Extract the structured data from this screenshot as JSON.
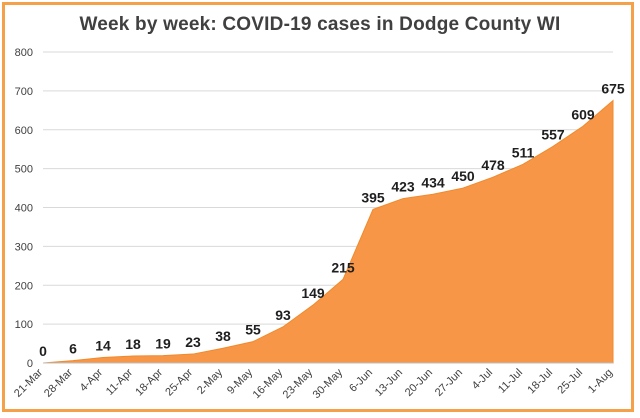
{
  "chart_data": {
    "type": "area",
    "title": "Week by week:  COVID-19 cases in Dodge County WI",
    "xlabel": "",
    "ylabel": "",
    "ylim": [
      0,
      800
    ],
    "yticks": [
      0,
      100,
      200,
      300,
      400,
      500,
      600,
      700,
      800
    ],
    "grid": true,
    "categories": [
      "21-Mar",
      "28-Mar",
      "4-Apr",
      "11-Apr",
      "18-Apr",
      "25-Apr",
      "2-May",
      "9-May",
      "16-May",
      "23-May",
      "30-May",
      "6-Jun",
      "13-Jun",
      "20-Jun",
      "27-Jun",
      "4-Jul",
      "11-Jul",
      "18-Jul",
      "25-Jul",
      "1-Aug"
    ],
    "values": [
      0,
      6,
      14,
      18,
      19,
      23,
      38,
      55,
      93,
      149,
      215,
      395,
      423,
      434,
      450,
      478,
      511,
      557,
      609,
      675
    ],
    "data_labels": [
      "0",
      "6",
      "14",
      "18",
      "19",
      "23",
      "38",
      "55",
      "93",
      "149",
      "215",
      "395",
      "423",
      "434",
      "450",
      "478",
      "511",
      "557",
      "609",
      "675"
    ],
    "color": "#f79646"
  }
}
